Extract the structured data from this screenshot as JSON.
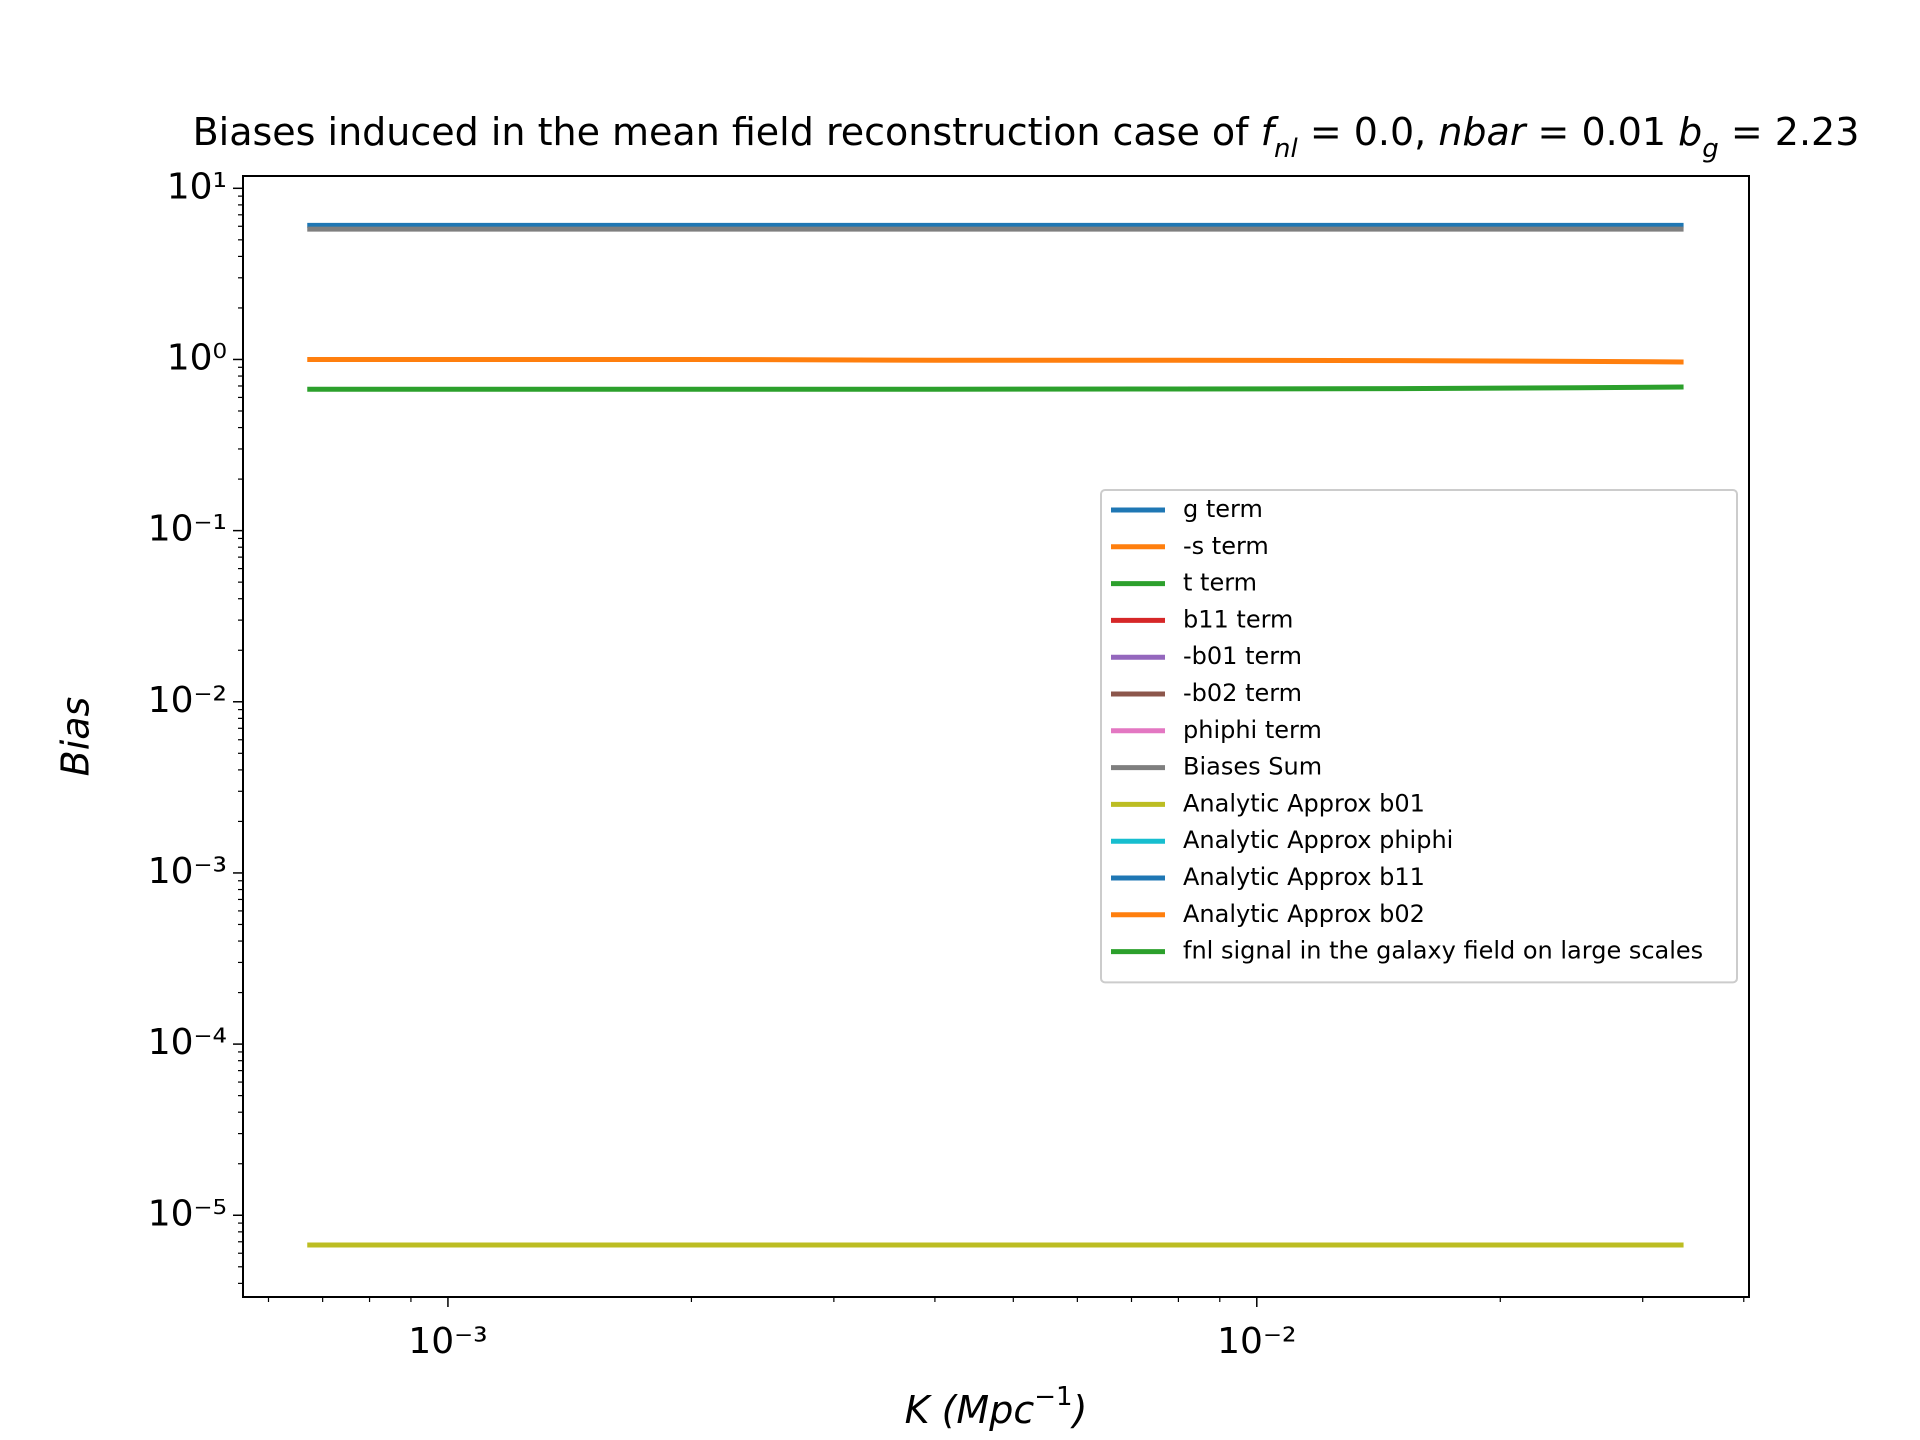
{
  "chart_data": {
    "type": "line",
    "title": [
      "Biases induced in the mean field reconstruction case of ",
      "f",
      "nl",
      " = 0.0, ",
      "nbar",
      " = 0.01 ",
      "b",
      "g",
      " = 2.23"
    ],
    "x_label": [
      "K (Mpc",
      "−1",
      ")"
    ],
    "y_label": "Bias",
    "x": [
      0.00067,
      0.001,
      0.002,
      0.004,
      0.008,
      0.015,
      0.025,
      0.0337
    ],
    "series": [
      {
        "name": "g term",
        "color": "#1f77b4",
        "values": [
          6.07,
          6.07,
          6.07,
          6.07,
          6.07,
          6.07,
          6.07,
          6.07
        ]
      },
      {
        "name": "-s term",
        "color": "#ff7f0e",
        "values": [
          1.0,
          1.0,
          1.0,
          0.99,
          0.99,
          0.985,
          0.975,
          0.967
        ]
      },
      {
        "name": "t term",
        "color": "#2ca02c",
        "values": [
          0.67,
          0.67,
          0.67,
          0.67,
          0.672,
          0.676,
          0.684,
          0.69
        ]
      },
      {
        "name": "b11 term",
        "color": "#d62728",
        "values": [
          null,
          null,
          null,
          null,
          null,
          null,
          null,
          null
        ]
      },
      {
        "name": "-b01 term",
        "color": "#9467bd",
        "values": [
          null,
          null,
          null,
          null,
          null,
          null,
          null,
          null
        ]
      },
      {
        "name": "-b02 term",
        "color": "#8c564b",
        "values": [
          null,
          null,
          null,
          null,
          null,
          null,
          null,
          null
        ]
      },
      {
        "name": "phiphi term",
        "color": "#e377c2",
        "values": [
          null,
          null,
          null,
          null,
          null,
          null,
          null,
          null
        ]
      },
      {
        "name": "Biases Sum",
        "color": "#7f7f7f",
        "values": [
          5.77,
          5.77,
          5.77,
          5.77,
          5.77,
          5.77,
          5.77,
          5.77
        ]
      },
      {
        "name": "Analytic Approx b01",
        "color": "#bcbd22",
        "values": [
          6.7e-06,
          6.7e-06,
          6.7e-06,
          6.7e-06,
          6.7e-06,
          6.7e-06,
          6.7e-06,
          6.7e-06
        ]
      },
      {
        "name": "Analytic Approx phiphi",
        "color": "#17becf",
        "values": [
          null,
          null,
          null,
          null,
          null,
          null,
          null,
          null
        ]
      },
      {
        "name": "Analytic Approx b11",
        "color": "#1f77b4",
        "values": [
          null,
          null,
          null,
          null,
          null,
          null,
          null,
          null
        ]
      },
      {
        "name": "Analytic Approx b02",
        "color": "#ff7f0e",
        "values": [
          null,
          null,
          null,
          null,
          null,
          null,
          null,
          null
        ]
      },
      {
        "name": "fnl signal in the galaxy field on large scales",
        "color": "#2ca02c",
        "values": [
          null,
          null,
          null,
          null,
          null,
          null,
          null,
          null
        ]
      }
    ],
    "xscale": "log",
    "yscale": "log",
    "xlim": [
      0.000558,
      0.0406
    ],
    "ylim": [
      3.33e-06,
      11.8
    ],
    "xticks": [
      {
        "value": 0.001,
        "label": "10⁻³"
      },
      {
        "value": 0.01,
        "label": "10⁻²"
      }
    ],
    "yticks": [
      {
        "value": 10,
        "label": "10¹"
      },
      {
        "value": 1,
        "label": "10⁰"
      },
      {
        "value": 0.1,
        "label": "10⁻¹"
      },
      {
        "value": 0.01,
        "label": "10⁻²"
      },
      {
        "value": 0.001,
        "label": "10⁻³"
      },
      {
        "value": 0.0001,
        "label": "10⁻⁴"
      },
      {
        "value": 1e-05,
        "label": "10⁻⁵"
      }
    ],
    "xminor_ticks": [
      0.0006,
      0.0007,
      0.0008,
      0.0009,
      0.002,
      0.003,
      0.004,
      0.005,
      0.006,
      0.007,
      0.008,
      0.009,
      0.02,
      0.03,
      0.04
    ],
    "yminor_ticks": [
      4e-06,
      5e-06,
      6e-06,
      7e-06,
      8e-06,
      9e-06,
      2e-05,
      3e-05,
      4e-05,
      5e-05,
      6e-05,
      7e-05,
      8e-05,
      9e-05,
      0.0002,
      0.0003,
      0.0004,
      0.0005,
      0.0006,
      0.0007,
      0.0008,
      0.0009,
      0.002,
      0.003,
      0.004,
      0.005,
      0.006,
      0.007,
      0.008,
      0.009,
      0.02,
      0.03,
      0.04,
      0.05,
      0.06,
      0.07,
      0.08,
      0.09,
      0.2,
      0.3,
      0.4,
      0.5,
      0.6,
      0.7,
      0.8,
      0.9,
      2,
      3,
      4,
      5,
      6,
      7,
      8,
      9
    ],
    "legend": "center right",
    "grid": false
  }
}
